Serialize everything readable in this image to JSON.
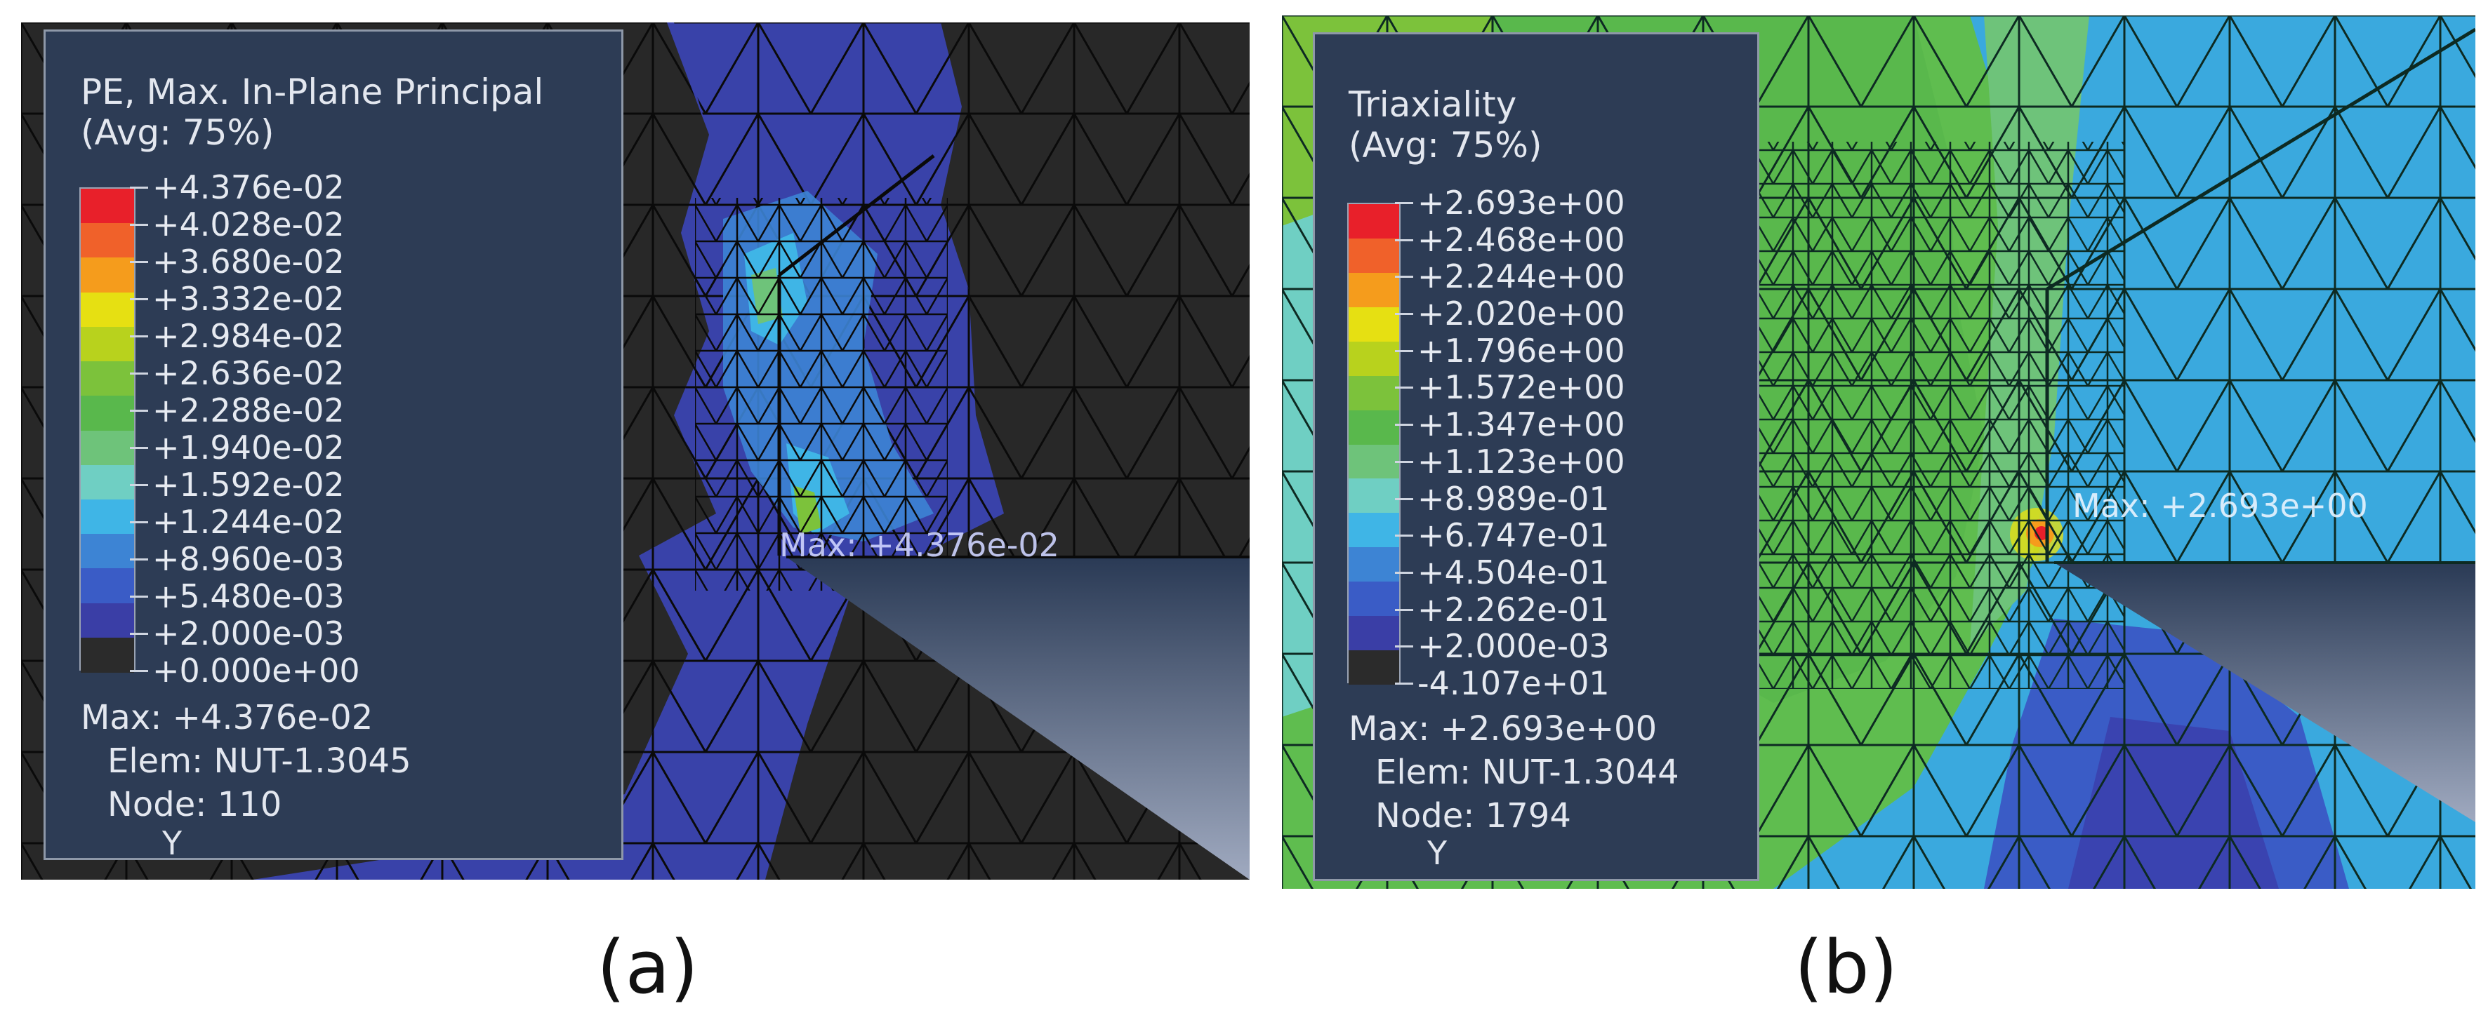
{
  "panels": [
    {
      "id": "a",
      "caption": "(a)",
      "legend": {
        "title_line1": "PE, Max. In-Plane Principal",
        "title_line2": "(Avg: 75%)",
        "labels": [
          "+4.376e-02",
          "+4.028e-02",
          "+3.680e-02",
          "+3.332e-02",
          "+2.984e-02",
          "+2.636e-02",
          "+2.288e-02",
          "+1.940e-02",
          "+1.592e-02",
          "+1.244e-02",
          "+8.960e-03",
          "+5.480e-03",
          "+2.000e-03",
          "+0.000e+00"
        ],
        "colors": [
          "#e8202a",
          "#f0612a",
          "#f59c1c",
          "#e6e012",
          "#b8d21d",
          "#7cc23b",
          "#59b84c",
          "#6ec37a",
          "#6fcfc3",
          "#3fb5e6",
          "#3d84d4",
          "#3a5cc6",
          "#3a3ea6",
          "#2b2b2b"
        ],
        "max_text": "Max: +4.376e-02",
        "elem_text": "Elem: NUT-1.3045",
        "node_text": "Node: 110",
        "axis": "Y"
      },
      "max_marker": "Max: +4.376e-02"
    },
    {
      "id": "b",
      "caption": "(b)",
      "legend": {
        "title_line1": "Triaxiality",
        "title_line2": "(Avg: 75%)",
        "labels": [
          "+2.693e+00",
          "+2.468e+00",
          "+2.244e+00",
          "+2.020e+00",
          "+1.796e+00",
          "+1.572e+00",
          "+1.347e+00",
          "+1.123e+00",
          "+8.989e-01",
          "+6.747e-01",
          "+4.504e-01",
          "+2.262e-01",
          "+2.000e-03",
          "-4.107e+01"
        ],
        "colors": [
          "#e8202a",
          "#f0612a",
          "#f59c1c",
          "#e6e012",
          "#b8d21d",
          "#7cc23b",
          "#59b84c",
          "#6ec37a",
          "#6fcfc3",
          "#3fb5e6",
          "#3d84d4",
          "#3a5cc6",
          "#3a3ea6",
          "#2b2b2b"
        ],
        "max_text": "Max: +2.693e+00",
        "elem_text": "Elem: NUT-1.3044",
        "node_text": "Node: 1794",
        "axis": "Y"
      },
      "max_marker": "Max: +2.693e+00"
    }
  ]
}
